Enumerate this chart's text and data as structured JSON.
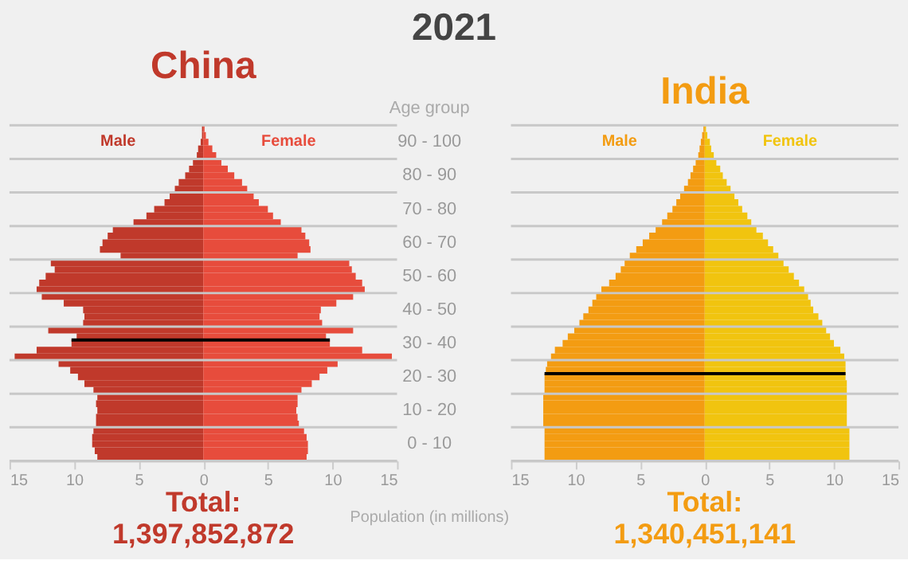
{
  "chart_data": [
    {
      "type": "bar",
      "orientation": "horizontal",
      "stacked": true,
      "title": "China",
      "xlabel": "Population (in millions)",
      "ylabel": "Age group",
      "categories": [
        null,
        null,
        "90 - 100",
        null,
        null,
        null,
        null,
        "80 - 90",
        null,
        null,
        null,
        null,
        "70 - 80",
        null,
        null,
        null,
        null,
        "60 - 70",
        null,
        null,
        null,
        null,
        "50 - 60",
        null,
        null,
        null,
        null,
        "40 - 50",
        null,
        null,
        null,
        null,
        "30 - 40",
        null,
        null,
        null,
        null,
        "20 - 30",
        null,
        null,
        null,
        null,
        "10 - 20",
        null,
        null,
        null,
        null,
        "0 - 10",
        null,
        null
      ],
      "series": [
        {
          "name": "Male",
          "color": "#c0392b",
          "values": [
            -0.1,
            -0.1,
            -0.2,
            -0.4,
            -0.5,
            -0.8,
            -1.1,
            -1.4,
            -1.9,
            -2.2,
            -2.6,
            -3.0,
            -3.8,
            -4.4,
            -5.4,
            -7.0,
            -7.4,
            -7.8,
            -8.0,
            -6.4,
            -11.8,
            -11.5,
            -12.2,
            -12.7,
            -12.9,
            -12.5,
            -10.8,
            -9.3,
            -9.2,
            -9.3,
            -12.0,
            -9.8,
            -10.2,
            -12.9,
            -14.6,
            -11.2,
            -10.3,
            -9.7,
            -9.2,
            -8.5,
            -8.2,
            -8.3,
            -8.2,
            -8.3,
            -8.3,
            -8.5,
            -8.6,
            -8.6,
            -8.4,
            -8.2
          ]
        },
        {
          "name": "Female",
          "color": "#e74c3c",
          "values": [
            0.1,
            0.2,
            0.4,
            0.7,
            1.0,
            1.4,
            1.9,
            2.4,
            3.0,
            3.4,
            3.9,
            4.3,
            5.0,
            5.4,
            6.0,
            7.6,
            7.9,
            8.2,
            8.3,
            7.3,
            11.3,
            11.5,
            11.8,
            12.3,
            12.5,
            11.6,
            10.3,
            9.1,
            9.0,
            9.2,
            11.6,
            9.5,
            9.8,
            12.3,
            14.6,
            10.4,
            9.6,
            9.0,
            8.4,
            7.6,
            7.3,
            7.3,
            7.2,
            7.3,
            7.4,
            7.8,
            8.0,
            8.1,
            8.1,
            8.0
          ]
        }
      ],
      "xlim": [
        -15,
        15
      ],
      "xticks": [
        {
          "value": -15,
          "label": "15"
        },
        {
          "value": -10,
          "label": "10"
        },
        {
          "value": -5,
          "label": "5"
        },
        0,
        5,
        10,
        15
      ],
      "grid": "y",
      "ref_lines": [
        {
          "axis": "y",
          "value": "30 - 40",
          "color": "#000000"
        }
      ],
      "annotations": [
        "2021",
        "Total:",
        "1,397,852,872"
      ]
    },
    {
      "type": "bar",
      "orientation": "horizontal",
      "stacked": true,
      "title": "India",
      "categories": [
        null,
        null,
        "90 - 100",
        null,
        null,
        null,
        null,
        "80 - 90",
        null,
        null,
        null,
        null,
        "70 - 80",
        null,
        null,
        null,
        null,
        "60 - 70",
        null,
        null,
        null,
        null,
        "50 - 60",
        null,
        null,
        null,
        null,
        "40 - 50",
        null,
        null,
        null,
        null,
        "30 - 40",
        null,
        null,
        null,
        null,
        "20 - 30",
        null,
        null,
        null,
        null,
        "10 - 20",
        null,
        null,
        null,
        null,
        "0 - 10",
        null,
        null
      ],
      "series": [
        {
          "name": "Male",
          "color": "#f39c12",
          "values": [
            -0.1,
            -0.2,
            -0.3,
            -0.4,
            -0.5,
            -0.7,
            -0.9,
            -1.1,
            -1.3,
            -1.6,
            -1.9,
            -2.2,
            -2.5,
            -2.9,
            -3.3,
            -3.8,
            -4.3,
            -4.8,
            -5.3,
            -5.8,
            -6.2,
            -6.5,
            -6.9,
            -7.4,
            -8.0,
            -8.4,
            -8.7,
            -9.0,
            -9.4,
            -9.7,
            -10.1,
            -10.6,
            -11.0,
            -11.6,
            -11.9,
            -12.2,
            -12.3,
            -12.4,
            -12.4,
            -12.4,
            -12.5,
            -12.5,
            -12.5,
            -12.5,
            -12.5,
            -12.4,
            -12.4,
            -12.4,
            -12.4,
            -12.4
          ]
        },
        {
          "name": "Female",
          "color": "#f1c40f",
          "values": [
            0.1,
            0.2,
            0.4,
            0.5,
            0.7,
            0.9,
            1.2,
            1.4,
            1.7,
            2.0,
            2.3,
            2.6,
            2.9,
            3.3,
            3.6,
            4.0,
            4.5,
            4.9,
            5.3,
            5.7,
            6.1,
            6.5,
            6.9,
            7.3,
            7.7,
            8.0,
            8.2,
            8.4,
            8.8,
            9.1,
            9.4,
            9.7,
            10.0,
            10.5,
            10.8,
            10.9,
            10.9,
            10.9,
            11.0,
            11.0,
            11.0,
            11.0,
            11.0,
            11.0,
            11.0,
            11.2,
            11.2,
            11.2,
            11.2,
            11.2
          ]
        }
      ],
      "xlim": [
        -15,
        15
      ],
      "xticks": [
        {
          "value": -15,
          "label": "15"
        },
        {
          "value": -10,
          "label": "10"
        },
        {
          "value": -5,
          "label": "5"
        },
        0,
        5,
        10,
        15
      ],
      "tick_labels": "x",
      "grid": "y",
      "ref_lines": [
        {
          "axis": "y",
          "value": "20 - 30",
          "color": "#000000"
        }
      ],
      "annotations": [
        "Total:",
        "1,340,451,141"
      ]
    }
  ]
}
